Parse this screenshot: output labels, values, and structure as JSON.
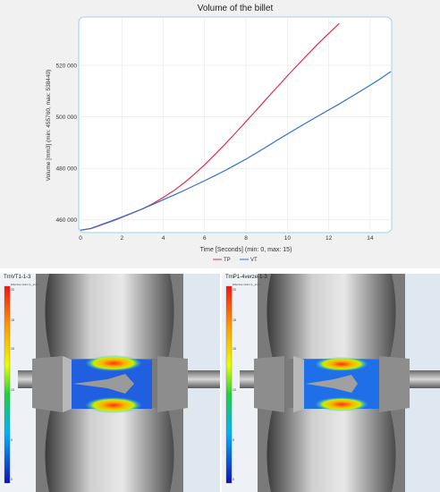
{
  "chart_data": {
    "type": "line",
    "title": "Volume of the billet",
    "xlabel": "Time [Seconds] (min: 0, max: 15)",
    "ylabel": "Volume [mm3] (min: 455760, max: 538440)",
    "xlim": [
      0,
      15
    ],
    "ylim": [
      455760,
      538440
    ],
    "xticks": [
      0,
      2,
      4,
      6,
      8,
      10,
      12,
      14
    ],
    "yticks": [
      460000,
      480000,
      500000,
      520000
    ],
    "ytick_labels": [
      "460 000",
      "480 000",
      "500 000",
      "520 000"
    ],
    "grid": true,
    "legend_position": "bottom-center",
    "series": [
      {
        "name": "TP",
        "color": "#dc2f55",
        "x": [
          0,
          0.5,
          1,
          1.5,
          2,
          2.5,
          3,
          3.5,
          4,
          4.5,
          5,
          5.5,
          6,
          6.5,
          7,
          7.5,
          8,
          8.5,
          9,
          9.5,
          10,
          10.5,
          11,
          11.5,
          12,
          12.5
        ],
        "y": [
          456000,
          456600,
          458000,
          459400,
          461000,
          462600,
          464300,
          466300,
          468700,
          471300,
          474300,
          477700,
          481400,
          485400,
          489500,
          493800,
          498200,
          502600,
          507100,
          511500,
          515900,
          520200,
          524400,
          528500,
          532400,
          536300
        ]
      },
      {
        "name": "VT",
        "color": "#2f6fd4",
        "x": [
          0,
          0.5,
          1,
          1.5,
          2,
          2.5,
          3,
          3.5,
          4,
          4.5,
          5,
          5.5,
          6,
          6.5,
          7,
          7.5,
          8,
          8.5,
          9,
          9.5,
          10,
          10.5,
          11,
          11.5,
          12,
          12.5,
          13,
          13.5,
          14,
          14.5,
          15
        ],
        "y": [
          456000,
          456700,
          458200,
          459600,
          461100,
          462700,
          464300,
          466000,
          467800,
          469600,
          471400,
          473300,
          475200,
          477200,
          479200,
          481400,
          483600,
          486000,
          488400,
          490900,
          493300,
          495700,
          498100,
          500400,
          502700,
          505000,
          507400,
          509800,
          512300,
          514800,
          517600
        ]
      }
    ]
  },
  "sim_panels": [
    {
      "label": "TrnVT1-1-3",
      "sub_label": "Effective strain (L_sim)",
      "colorbar_ticks": [
        "20",
        "18",
        "15",
        "10",
        "5",
        "0"
      ]
    },
    {
      "label": "TrnP1-4verze-1-3",
      "sub_label": "Effective strain (L_sim)",
      "colorbar_ticks": [
        "20",
        "18",
        "15",
        "10",
        "5",
        "0"
      ]
    }
  ]
}
